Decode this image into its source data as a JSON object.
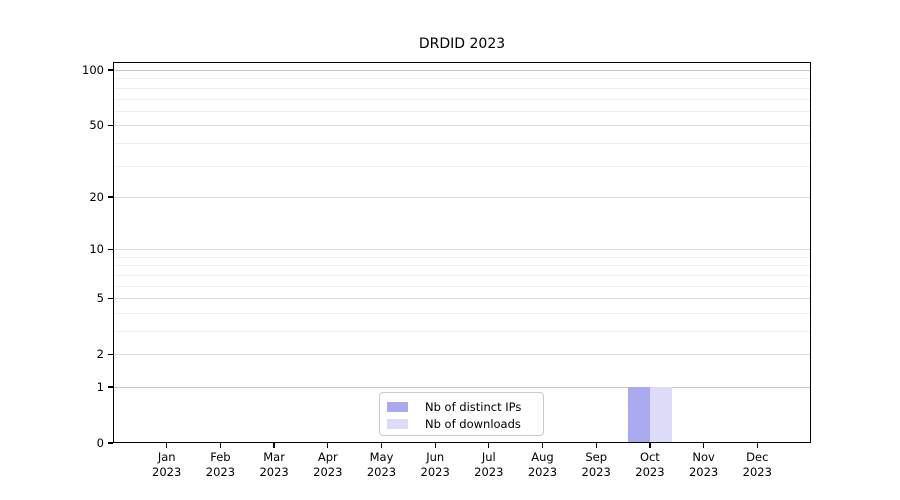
{
  "title": "DRDID 2023",
  "colors": {
    "background": "#ffffff",
    "axis": "#000000",
    "bar_distinct_ips": "#a9a9f0",
    "bar_downloads": "#dcdcf8",
    "grid_strong": "#c6c6c6",
    "grid_major": "#dadada",
    "grid_minor": "#efefef",
    "legend_border": "#c9c9c9"
  },
  "legend": {
    "items": [
      {
        "label": "Nb of distinct IPs",
        "color": "#a9a9f0"
      },
      {
        "label": "Nb of downloads",
        "color": "#dcdcf8"
      }
    ]
  },
  "y_axis": {
    "ticks": [
      0,
      1,
      2,
      5,
      10,
      20,
      50,
      100
    ],
    "minor_gridlines": [
      3,
      4,
      6,
      7,
      8,
      9,
      30,
      40,
      60,
      70,
      80,
      90
    ],
    "strong_gridlines": [
      1,
      100
    ]
  },
  "x_axis": {
    "months": [
      "Jan",
      "Feb",
      "Mar",
      "Apr",
      "May",
      "Jun",
      "Jul",
      "Aug",
      "Sep",
      "Oct",
      "Nov",
      "Dec"
    ],
    "year": "2023"
  },
  "chart_data": {
    "type": "bar",
    "title": "DRDID 2023",
    "xlabel": "",
    "ylabel": "",
    "categories": [
      "Jan 2023",
      "Feb 2023",
      "Mar 2023",
      "Apr 2023",
      "May 2023",
      "Jun 2023",
      "Jul 2023",
      "Aug 2023",
      "Sep 2023",
      "Oct 2023",
      "Nov 2023",
      "Dec 2023"
    ],
    "series": [
      {
        "name": "Nb of distinct IPs",
        "color": "#a9a9f0",
        "values": [
          0,
          0,
          0,
          0,
          0,
          0,
          0,
          0,
          0,
          1,
          0,
          0
        ]
      },
      {
        "name": "Nb of downloads",
        "color": "#dcdcf8",
        "values": [
          0,
          0,
          0,
          0,
          0,
          0,
          0,
          0,
          0,
          1,
          0,
          0
        ]
      }
    ],
    "yscale": "log1p",
    "y_ticks": [
      0,
      1,
      2,
      5,
      10,
      20,
      50,
      100
    ],
    "ylim": [
      0,
      110
    ],
    "grid": true,
    "legend_position": "lower center"
  }
}
